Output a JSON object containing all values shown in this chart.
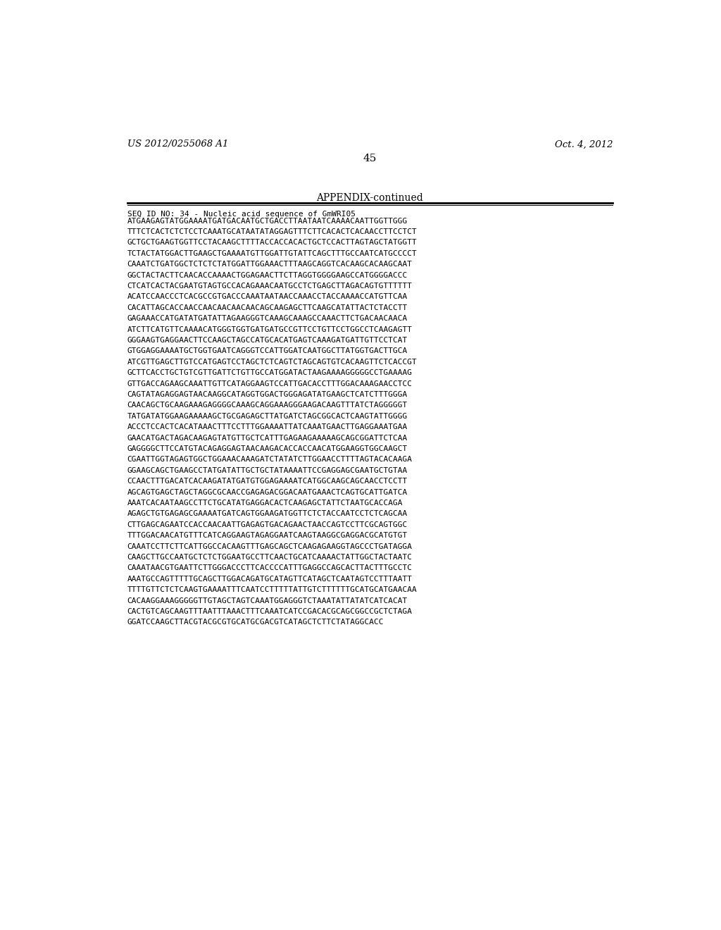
{
  "page_left": "US 2012/0255068 A1",
  "page_right": "Oct. 4, 2012",
  "page_number": "45",
  "title": "APPENDIX-continued",
  "background_color": "#ffffff",
  "text_color": "#000000",
  "seq_header_line1": "SEQ ID NO: 34 - Nucleic acid sequence of GmWRI05",
  "seq_header_line2": "ATGAAGAGTATGGAAAATGATGACAATGCTGACCTTAATAATCAAAACAATTGGTTGGG",
  "sequence_lines": [
    "TTTCTCACTCTCTCCTCAAATGCATAATATAGGAGTTTCTTCACACTCACAACCTTCCTCT",
    "GCTGCTGAAGTGGTTCCTACAAGCTTTTACCACCACACTGCTCCACTTAGTAGCTATGGTT",
    "TCTACTATGGACTTGAAGCTGAAAATGTTGGATTGTATTCAGCTTTGCCAATCATGCCCCT",
    "CAAATCTGATGGCTCTCTCTATGGATTGGAAACTTTAAGCAGGTCACAAGCACAAGCAAT",
    "GGCTACTACTTCAACACCAAAACTGGAGAACTTCTTAGGTGGGGAAGCCATGGGGACCC",
    "CTCATCACTACGAATGTAGTGCCACAGAAACAATGCCTCTGAGCTTAGACAGTGTTTTTT",
    "ACATCCAACCCTCACGCCGTGACCCAAATAATAACCAAACCTACCAAAACCATGTTCAA",
    "CACATTAGCACCAACCAACAACAACAACAGCAAGAGCTTCAAGCATATTACTCTACCTT",
    "GAGAAACCATGATATGATATTAGAAGGGTCAAAGCAAAGCCAAACTTCTGACAACAACA",
    "ATCTTCATGTTCAAAACATGGGTGGTGATGATGCCGTTCCTGTTCCTGGCCTCAAGAGTT",
    "GGGAAGTGAGGAACTTCCAAGCTAGCCATGCACATGAGTCAAAGATGATTGTTCCTCAT",
    "GTGGAGGAAAATGCTGGTGAATCAGGGTCCATTGGATCAATGGCTTATGGTGACTTGCA",
    "ATCGTTGAGCTTGTCCATGAGTCCTAGCTCTCAGTCTAGCAGTGTCACAAGTTCTCACCGT",
    "GCTTCACCTGCTGTCGTTGATTCTGTTGCCATGGATACTAAGAAAAGGGGGCCTGAAAAG",
    "GTTGACCAGAAGCAAATTGTTCATAGGAAGTCCATTGACACCTTTGGACAAAGAACCTCC",
    "CAGTATAGAGGAGTAACAAGGCATAGGTGGACTGGGAGATATGAAGCTCATCTTTGGGA",
    "CAACAGCTGCAAGAAAGAGGGGCAAAGCAGGAAAGGGAAGACAAGTTTATCTAGGGGGT",
    "TATGATATGGAAGAAAAAGCTGCGAGAGCTTATGATCTAGCGGCACTCAAGTATTGGGG",
    "ACCCTCCACTCACATAAACTTTCCTTTGGAAAATTATCAAATGAACTTGAGGAAATGAA",
    "GAACATGACTAGACAAGAGTATGTTGCTCATTTGAGAAGAAAAAGCAGCGGATTCTCAA",
    "GAGGGGCTTCCATGTACAGAGGAGTAACAAGACACCACCAACATGGAAGGTGGCAAGCT",
    "CGAATTGGTAGAGTGGCTGGAAACAAAGATCTATATCTTGGAACCTTTTAGTACACAAGA",
    "GGAAGCAGCTGAAGCCTATGATATTGCTGCTATAAAATTCCGAGGAGCGAATGCTGTAA",
    "CCAACTTTGACATCACAAGATATGATGTGGAGAAAATCATGGCAAGCAGCAACCTCCTT",
    "AGCAGTGAGCTAGCTAGGCGCAACCGAGAGACGGACAATGAAACTCAGTGCATTGATCA",
    "AAATCACAATAAGCCTTCTGCATATGAGGACACTCAAGAGCTATTCTAATGCACCAGA",
    "AGAGCTGTGAGAGCGAAAATGATCAGTGGAAGATGGTTCTCTACCAATCCTCTCAGCAA",
    "CTTGAGCAGAATCCACCAACAATTGAGAGTGACAGAACTAACCAGTCCTTCGCAGTGGC",
    "TTTGGACAACATGTTTCATCAGGAAGTAGAGGAATCAAGTAAGGCGAGGACGCATGTGT",
    "CAAATCCTTCTTCATTGGCCACAAGTTTGAGCAGCTCAAGAGAAGGTAGCCCTGATAGGA",
    "CAAGCTTGCCAATGCTCTCTGGAATGCCTTCAACTGCATCAAAACTATTGGCTACTAATC",
    "CAAATAACGTGAATTCTTGGGACCCTTCACCCCATTTGAGGCCAGCACTTACTTTGCCTC",
    "AAATGCCAGTTTTTGCAGCTTGGACAGATGCATAGTTCATAGCTCAATAGTCCTTTAATT",
    "TTTTGTTCTCTCAAGTGAAAATTTCAATCCTTTTTATTGTCTTTTTTGCATGCATGAACAA",
    "CACAAGGAAAGGGGGTTGTAGCTAGTCAAATGGAGGGTCTAAATATTATATCATCACAT",
    "CACTGTCAGCAAGTTTAATTTAAACTTTCAAATCATCCGACACGCAGCGGCCGCTCTAGA",
    "GGATCCAAGCTTACGTACGCGTGCATGCGACGTCATAGCTCTTCTATAGGCACC"
  ]
}
